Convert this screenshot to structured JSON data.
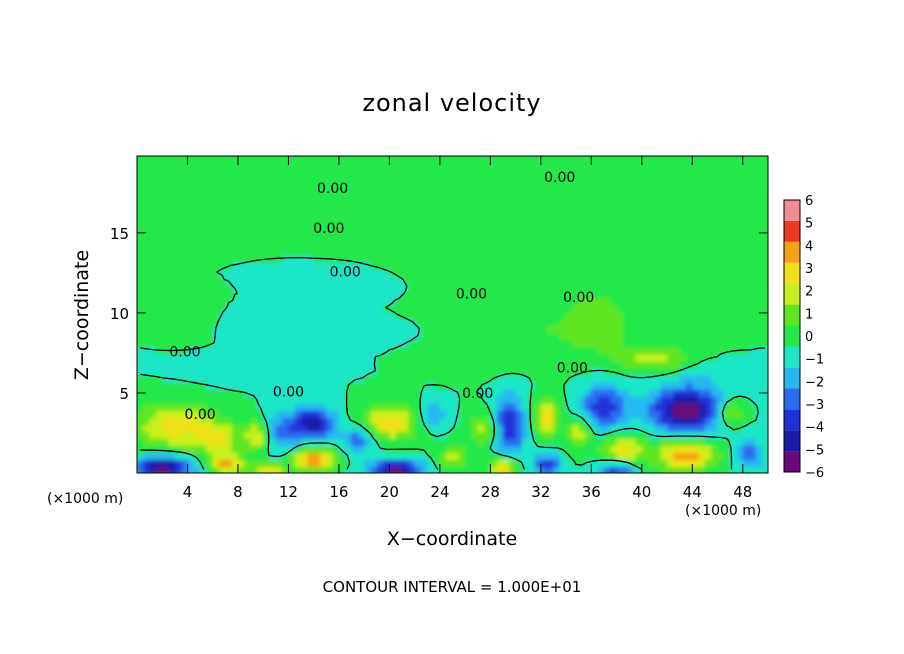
{
  "chart_data": {
    "type": "heatmap",
    "title": "zonal velocity",
    "xlabel": "X−coordinate",
    "ylabel": "Z−coordinate",
    "x_unit_left": "(×1000 m)",
    "x_unit_right": "(×1000 m)",
    "footer": "CONTOUR INTERVAL = 1.000E+01",
    "xlim": [
      0,
      50
    ],
    "ylim": [
      0,
      19.8
    ],
    "x_ticks": [
      "4",
      "8",
      "12",
      "16",
      "20",
      "24",
      "28",
      "32",
      "36",
      "40",
      "44",
      "48"
    ],
    "y_ticks": [
      "5",
      "10",
      "15"
    ],
    "colorbar": {
      "levels": [
        -6,
        -5,
        -4,
        -3,
        -2,
        -1,
        0,
        1,
        2,
        3,
        4,
        5,
        6
      ],
      "labels": [
        "6",
        "5",
        "4",
        "3",
        "2",
        "1",
        "0",
        "−1",
        "−2",
        "−3",
        "−4",
        "−5",
        "−6"
      ],
      "colors": [
        "#6a0a7a",
        "#1a1aa8",
        "#2030d8",
        "#2a6cf0",
        "#28b8f0",
        "#1ee6c8",
        "#22e84a",
        "#5ee622",
        "#c8f01e",
        "#f0e018",
        "#f4a018",
        "#ee3a20",
        "#f08c94"
      ]
    },
    "blobs": [
      {
        "x": 3,
        "z": 3.0,
        "sx": 3.0,
        "sz": 1.4,
        "v": 3.6
      },
      {
        "x": 6.5,
        "z": 2.2,
        "sx": 1.6,
        "sz": 1.0,
        "v": 3.0
      },
      {
        "x": 2,
        "z": 0.4,
        "sx": 2.4,
        "sz": 0.7,
        "v": -5.5
      },
      {
        "x": 7,
        "z": 0.6,
        "sx": 1.5,
        "sz": 0.6,
        "v": 4.0
      },
      {
        "x": 9.5,
        "z": 2.4,
        "sx": 1.0,
        "sz": 0.9,
        "v": 3.0
      },
      {
        "x": 11.5,
        "z": 2.6,
        "sx": 1.3,
        "sz": 1.2,
        "v": -2.6
      },
      {
        "x": 14,
        "z": 3.2,
        "sx": 1.6,
        "sz": 1.0,
        "v": -4.8
      },
      {
        "x": 14,
        "z": 0.9,
        "sx": 1.6,
        "sz": 0.7,
        "v": 5.2
      },
      {
        "x": 10.5,
        "z": 0.3,
        "sx": 1.2,
        "sz": 0.4,
        "v": 3.5
      },
      {
        "x": 17.5,
        "z": 2.2,
        "sx": 1.2,
        "sz": 0.8,
        "v": -3.0
      },
      {
        "x": 20,
        "z": 3.2,
        "sx": 2.2,
        "sz": 1.0,
        "v": 3.8
      },
      {
        "x": 20.5,
        "z": 0.3,
        "sx": 2.0,
        "sz": 0.6,
        "v": -5.6
      },
      {
        "x": 23.5,
        "z": 3.6,
        "sx": 1.0,
        "sz": 0.8,
        "v": -2.2
      },
      {
        "x": 25,
        "z": 1.0,
        "sx": 1.2,
        "sz": 0.8,
        "v": 2.2
      },
      {
        "x": 27.5,
        "z": 2.8,
        "sx": 1.2,
        "sz": 1.0,
        "v": 2.5
      },
      {
        "x": 29.5,
        "z": 3.0,
        "sx": 1.2,
        "sz": 1.8,
        "v": -4.2
      },
      {
        "x": 29,
        "z": 0.4,
        "sx": 1.0,
        "sz": 0.6,
        "v": 4.5
      },
      {
        "x": 32.5,
        "z": 3.5,
        "sx": 1.0,
        "sz": 1.2,
        "v": 3.6
      },
      {
        "x": 32.5,
        "z": 0.6,
        "sx": 1.0,
        "sz": 0.6,
        "v": -4.0
      },
      {
        "x": 35,
        "z": 2.6,
        "sx": 0.9,
        "sz": 0.9,
        "v": 2.8
      },
      {
        "x": 37,
        "z": 4.2,
        "sx": 1.8,
        "sz": 1.4,
        "v": -3.8
      },
      {
        "x": 38.5,
        "z": 1.5,
        "sx": 1.8,
        "sz": 1.0,
        "v": 3.2
      },
      {
        "x": 38,
        "z": 0.3,
        "sx": 1.4,
        "sz": 0.5,
        "v": -3.8
      },
      {
        "x": 43.5,
        "z": 4.0,
        "sx": 2.8,
        "sz": 1.4,
        "v": -5.8
      },
      {
        "x": 43.5,
        "z": 1.2,
        "sx": 2.3,
        "sz": 1.0,
        "v": 4.6
      },
      {
        "x": 47,
        "z": 3.8,
        "sx": 1.2,
        "sz": 0.8,
        "v": 2.6
      },
      {
        "x": 48.5,
        "z": 1.2,
        "sx": 1.0,
        "sz": 1.0,
        "v": -2.5
      },
      {
        "x": 36.5,
        "z": 9.5,
        "sx": 3.0,
        "sz": 2.2,
        "v": 1.6
      },
      {
        "x": 41,
        "z": 7.2,
        "sx": 2.8,
        "sz": 0.8,
        "v": 2.4
      },
      {
        "x": 31,
        "z": 8.8,
        "sx": 3.5,
        "sz": 1.5,
        "v": 0.9
      },
      {
        "x": 12,
        "z": 9.2,
        "sx": 5.0,
        "sz": 0.8,
        "v": -0.9
      },
      {
        "x": 4,
        "z": 9.5,
        "sx": 2.0,
        "sz": 1.0,
        "v": 1.0
      },
      {
        "x": 8,
        "z": 6.6,
        "sx": 4.0,
        "sz": 0.8,
        "v": -0.7
      },
      {
        "x": 27,
        "z": 7.0,
        "sx": 3.0,
        "sz": 0.8,
        "v": 0.7
      },
      {
        "x": 45,
        "z": 6.2,
        "sx": 2.0,
        "sz": 0.8,
        "v": -0.7
      },
      {
        "x": 25,
        "z": 14,
        "sx": 6.0,
        "sz": 2.5,
        "v": 0.6
      },
      {
        "x": 8,
        "z": 17.5,
        "sx": 5.0,
        "sz": 1.5,
        "v": 0.5
      },
      {
        "x": 44,
        "z": 14,
        "sx": 4.0,
        "sz": 2.0,
        "v": 0.7
      },
      {
        "x": 18,
        "z": 12,
        "sx": 4.0,
        "sz": 1.0,
        "v": -0.4
      }
    ],
    "contour_labels": [
      {
        "text": "0.00",
        "x": 33.5,
        "z": 18.5
      },
      {
        "text": "0.00",
        "x": 15.5,
        "z": 17.8
      },
      {
        "text": "0.00",
        "x": 15.2,
        "z": 15.3
      },
      {
        "text": "0.00",
        "x": 16.5,
        "z": 12.6
      },
      {
        "text": "0.00",
        "x": 3.8,
        "z": 7.6
      },
      {
        "text": "0.00",
        "x": 12.0,
        "z": 5.1
      },
      {
        "text": "0.00",
        "x": 27.0,
        "z": 5.0
      },
      {
        "text": "0.00",
        "x": 34.5,
        "z": 6.6
      },
      {
        "text": "0.00",
        "x": 26.5,
        "z": 11.2
      },
      {
        "text": "0.00",
        "x": 35.0,
        "z": 11.0
      },
      {
        "text": "0.00",
        "x": 5.0,
        "z": 3.7
      }
    ]
  }
}
